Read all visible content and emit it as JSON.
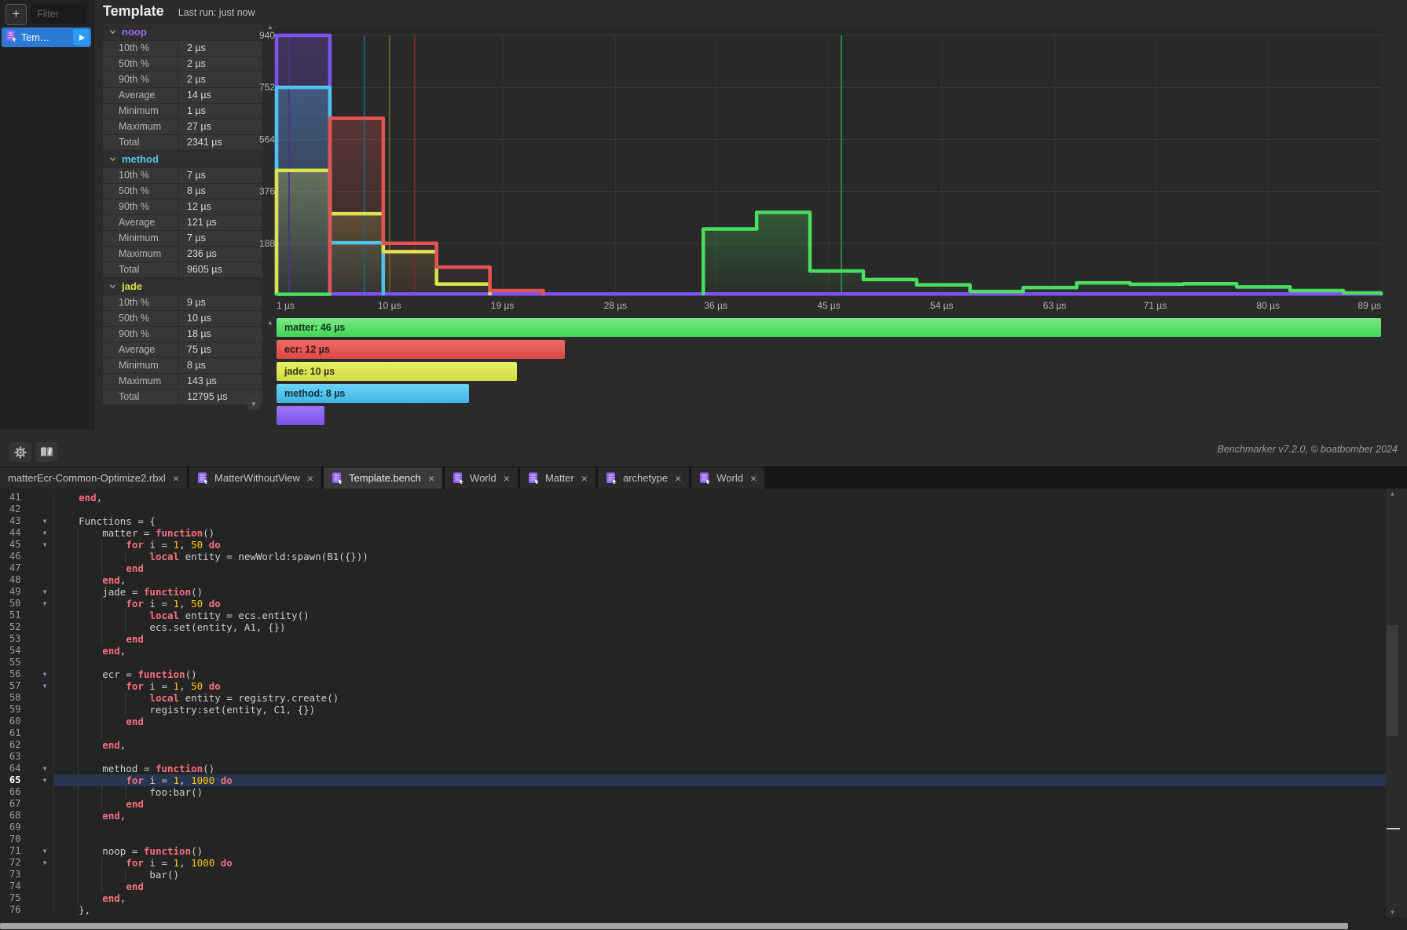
{
  "sidebar": {
    "add_button": "+",
    "filter_placeholder": "Filter",
    "run_item": {
      "label": "Tem…"
    }
  },
  "header": {
    "title": "Template",
    "last_run": "Last run: just now"
  },
  "stats": {
    "sections": [
      {
        "name": "noop",
        "color": "#9a6cf0",
        "rows": [
          [
            "10th %",
            "2 µs"
          ],
          [
            "50th %",
            "2 µs"
          ],
          [
            "90th %",
            "2 µs"
          ],
          [
            "Average",
            "14 µs"
          ],
          [
            "Minimum",
            "1 µs"
          ],
          [
            "Maximum",
            "27 µs"
          ],
          [
            "Total",
            "2341 µs"
          ]
        ]
      },
      {
        "name": "method",
        "color": "#54c6ea",
        "rows": [
          [
            "10th %",
            "7 µs"
          ],
          [
            "50th %",
            "8 µs"
          ],
          [
            "90th %",
            "12 µs"
          ],
          [
            "Average",
            "121 µs"
          ],
          [
            "Minimum",
            "7 µs"
          ],
          [
            "Maximum",
            "236 µs"
          ],
          [
            "Total",
            "9605 µs"
          ]
        ]
      },
      {
        "name": "jade",
        "color": "#d8e14c",
        "rows": [
          [
            "10th %",
            "9 µs"
          ],
          [
            "50th %",
            "10 µs"
          ],
          [
            "90th %",
            "18 µs"
          ],
          [
            "Average",
            "75 µs"
          ],
          [
            "Minimum",
            "8 µs"
          ],
          [
            "Maximum",
            "143 µs"
          ],
          [
            "Total",
            "12795 µs"
          ]
        ]
      }
    ]
  },
  "chart_data": {
    "type": "histogram",
    "x_unit": "µs",
    "xlim": [
      1,
      89
    ],
    "ylim": [
      0,
      940
    ],
    "x_ticks": [
      "1 µs",
      "10 µs",
      "19 µs",
      "28 µs",
      "36 µs",
      "45 µs",
      "54 µs",
      "63 µs",
      "71 µs",
      "80 µs",
      "89 µs"
    ],
    "x_tick_values": [
      1,
      10,
      19,
      28,
      36,
      45,
      54,
      63,
      71,
      80,
      89
    ],
    "y_ticks": [
      188,
      376,
      564,
      752,
      940
    ],
    "grid": true,
    "series": [
      {
        "name": "noop",
        "color": "#7e52f0",
        "median_us": 2,
        "median_line_color": "#4a3880",
        "steps": [
          [
            1,
            940
          ],
          [
            5.25,
            5
          ],
          [
            89,
            0
          ]
        ]
      },
      {
        "name": "method",
        "color": "#4fc3ee",
        "median_us": 8,
        "median_line_color": "#1d6374",
        "steps": [
          [
            1,
            752
          ],
          [
            5.25,
            190
          ],
          [
            9.5,
            0
          ]
        ]
      },
      {
        "name": "jade",
        "color": "#dbe24e",
        "median_us": 10,
        "median_line_color": "#60602a",
        "steps": [
          [
            1,
            452
          ],
          [
            5.25,
            295
          ],
          [
            9.5,
            158
          ],
          [
            13.75,
            41
          ],
          [
            18,
            0
          ]
        ]
      },
      {
        "name": "ecr",
        "color": "#e25353",
        "median_us": 12,
        "median_line_color": "#6f2d2d",
        "steps": [
          [
            5.25,
            640
          ],
          [
            9.5,
            188
          ],
          [
            13.75,
            102
          ],
          [
            18,
            17
          ],
          [
            22.25,
            0
          ]
        ]
      },
      {
        "name": "matter",
        "color": "#4ade5f",
        "median_us": 46,
        "median_line_color": "#2c8547",
        "steps": [
          [
            1,
            4
          ],
          [
            5.25,
            null
          ],
          [
            35,
            240
          ],
          [
            39.25,
            300
          ],
          [
            43.5,
            88
          ],
          [
            47.75,
            57
          ],
          [
            52,
            38
          ],
          [
            56.25,
            14
          ],
          [
            60.5,
            28
          ],
          [
            64.75,
            45
          ],
          [
            69,
            40
          ],
          [
            73.25,
            42
          ],
          [
            77.5,
            30
          ],
          [
            81.75,
            17
          ],
          [
            86,
            9
          ],
          [
            89,
            0
          ]
        ]
      }
    ],
    "legend": [
      {
        "label": "matter: 46 µs",
        "value_us": 46,
        "color_top": "#7be886",
        "color_bottom": "#3fd553",
        "text_color": "#173321"
      },
      {
        "label": "ecr: 12 µs",
        "value_us": 12,
        "color_top": "#ef6b66",
        "color_bottom": "#d94848",
        "text_color": "#3a1515"
      },
      {
        "label": "jade: 10 µs",
        "value_us": 10,
        "color_top": "#e8ef66",
        "color_bottom": "#d2d943",
        "text_color": "#343511"
      },
      {
        "label": "method: 8 µs",
        "value_us": 8,
        "color_top": "#6cd4f4",
        "color_bottom": "#3db4e4",
        "text_color": "#0f2f3d"
      },
      {
        "label": "",
        "value_us": 2,
        "color_top": "#9a78f5",
        "color_bottom": "#7b52ec",
        "text_color": "#241448"
      }
    ],
    "legend_max_us": 46
  },
  "footer": {
    "credit": "Benchmarker v7.2.0, © boatbomber 2024"
  },
  "tabbar": {
    "close_label": "×",
    "tabs": [
      {
        "label": "matterEcr-Common-Optimize2.rbxl",
        "icon": false,
        "active": false
      },
      {
        "label": "MatterWithoutView",
        "icon": true,
        "active": false
      },
      {
        "label": "Template.bench",
        "icon": true,
        "active": true
      },
      {
        "label": "World",
        "icon": true,
        "active": false
      },
      {
        "label": "Matter",
        "icon": true,
        "active": false
      },
      {
        "label": "archetype",
        "icon": true,
        "active": false
      },
      {
        "label": "World",
        "icon": true,
        "active": false
      }
    ]
  },
  "editor": {
    "first_line": 41,
    "current_line": 65,
    "fold_lines": [
      43,
      44,
      45,
      49,
      50,
      56,
      57,
      64,
      65,
      71,
      72
    ],
    "lines": [
      "    end,",
      "",
      "    Functions = {",
      "        matter = function()",
      "            for i = 1, 50 do",
      "                local entity = newWorld:spawn(B1({}))",
      "            end",
      "        end,",
      "        jade = function()",
      "            for i = 1, 50 do",
      "                local entity = ecs.entity()",
      "                ecs.set(entity, A1, {})",
      "            end",
      "        end,",
      "",
      "        ecr = function()",
      "            for i = 1, 50 do",
      "                local entity = registry.create()",
      "                registry:set(entity, C1, {})",
      "            end",
      "",
      "        end,",
      "",
      "        method = function()",
      "            for i = 1, 1000 do",
      "                foo:bar()",
      "            end",
      "        end,",
      "",
      "",
      "        noop = function()",
      "            for i = 1, 1000 do",
      "                bar()",
      "            end",
      "        end,",
      "    },"
    ]
  }
}
